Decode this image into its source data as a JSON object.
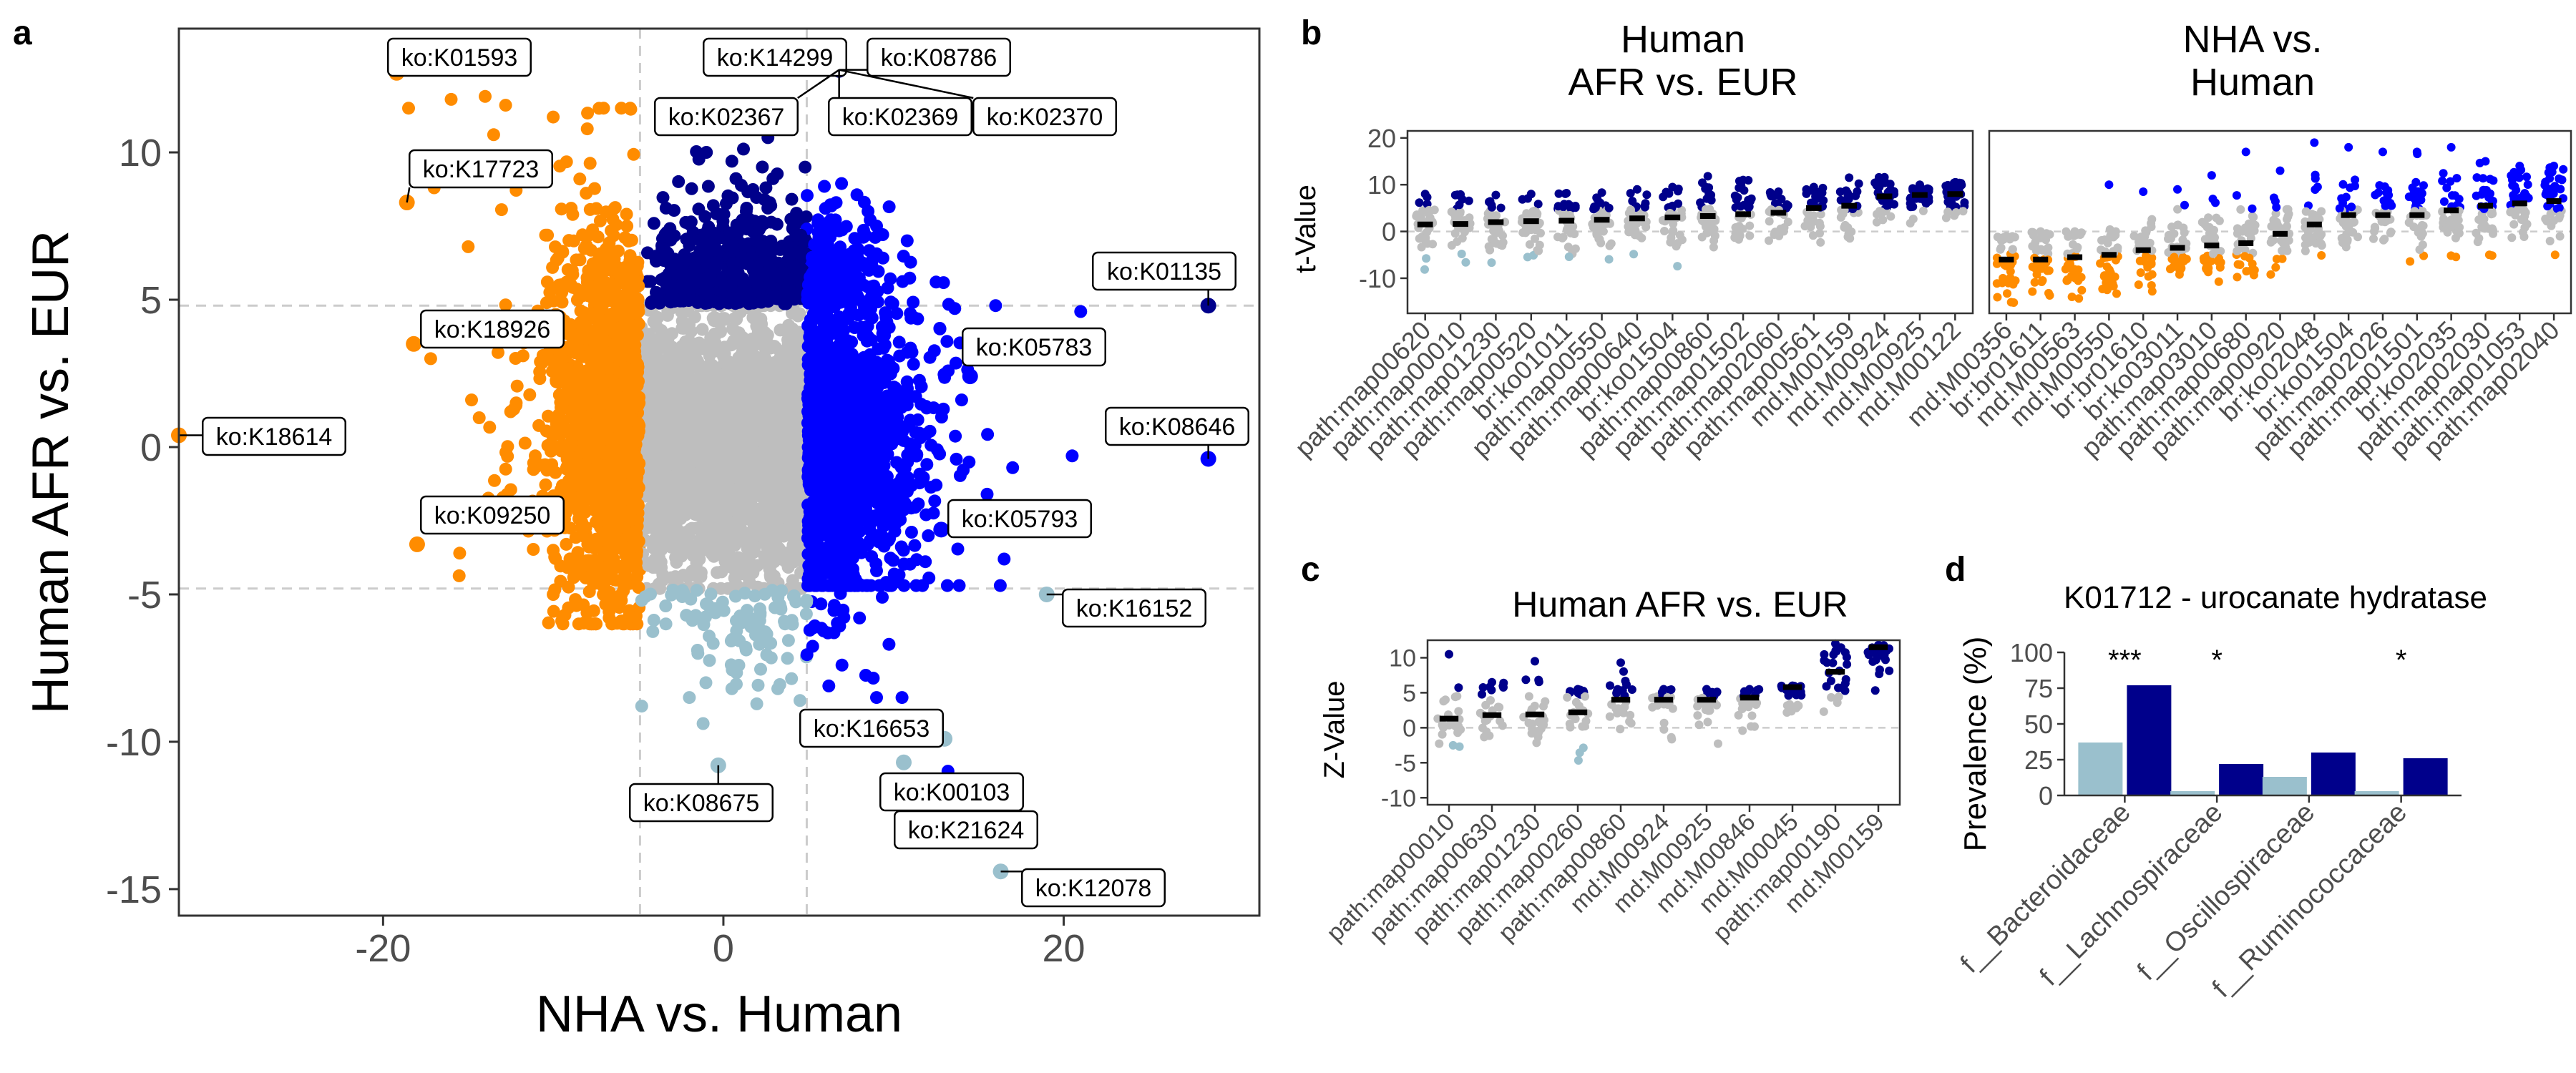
{
  "colors": {
    "orange": "#ff8c00",
    "navy": "#00008b",
    "blue": "#0000ff",
    "grey": "#bebebe",
    "lightblue": "#9ac0cd",
    "dashed": "#cccccc",
    "panel_border": "#333333",
    "mean_bar": "#000000"
  },
  "panel_labels": {
    "a": "a",
    "b": "b",
    "c": "c",
    "d": "d"
  },
  "chart_data": [
    {
      "panel": "a",
      "type": "scatter",
      "title": "",
      "xlabel": "NHA vs. Human",
      "ylabel": "Human AFR vs. EUR",
      "xlim": [
        -32,
        31.5
      ],
      "ylim": [
        -15.9,
        14.2
      ],
      "xticks": [
        -20,
        0,
        20
      ],
      "xtick_labels": [
        "-20",
        "0",
        "20"
      ],
      "yticks": [
        -15,
        -10,
        -5,
        0,
        5,
        10
      ],
      "ytick_labels": [
        "-15",
        "-10",
        "-5",
        "0",
        "5",
        "10"
      ],
      "thresholds": {
        "x": [
          -4.9,
          4.9
        ],
        "y": [
          -4.8,
          4.8
        ]
      },
      "grid": false,
      "legend": "none",
      "color_rule": {
        "orange": "NHA vs. Human < -4.9",
        "navy": "Human AFR vs. EUR > 4.8 and NHA vs. Human > -4.9",
        "blue": "NHA vs. Human > 4.9",
        "lightblue": "Human AFR vs. EUR < -4.8",
        "grey": "not significant"
      },
      "labeled_points": [
        {
          "label": "ko:K01593",
          "x": -19.2,
          "y": 12.7,
          "color": "orange"
        },
        {
          "label": "ko:K14299",
          "x": 6.8,
          "y": 12.8,
          "color": "navy"
        },
        {
          "label": "ko:K08786",
          "x": 6.8,
          "y": 12.8,
          "color": "navy"
        },
        {
          "label": "ko:K02367",
          "x": 6.8,
          "y": 12.8,
          "color": "navy"
        },
        {
          "label": "ko:K02369",
          "x": 6.8,
          "y": 12.8,
          "color": "navy"
        },
        {
          "label": "ko:K02370",
          "x": 6.8,
          "y": 12.8,
          "color": "navy"
        },
        {
          "label": "ko:K17723",
          "x": -18.6,
          "y": 8.3,
          "color": "orange"
        },
        {
          "label": "ko:K01135",
          "x": 28.5,
          "y": 4.8,
          "color": "navy"
        },
        {
          "label": "ko:K18926",
          "x": -18.2,
          "y": 3.5,
          "color": "orange"
        },
        {
          "label": "ko:K05783",
          "x": 14.5,
          "y": 2.4,
          "color": "blue"
        },
        {
          "label": "ko:K18614",
          "x": -32,
          "y": 0.4,
          "color": "orange"
        },
        {
          "label": "ko:K08646",
          "x": 28.5,
          "y": -0.4,
          "color": "blue"
        },
        {
          "label": "ko:K09250",
          "x": -18,
          "y": -3.3,
          "color": "orange"
        },
        {
          "label": "ko:K05793",
          "x": 12.8,
          "y": -2.8,
          "color": "blue"
        },
        {
          "label": "ko:K16152",
          "x": 19,
          "y": -5,
          "color": "lightblue"
        },
        {
          "label": "ko:K16653",
          "x": 13,
          "y": -9.9,
          "color": "lightblue"
        },
        {
          "label": "ko:K00103",
          "x": 10.6,
          "y": -10.7,
          "color": "lightblue"
        },
        {
          "label": "ko:K08675",
          "x": -0.3,
          "y": -10.8,
          "color": "lightblue"
        },
        {
          "label": "ko:K21624",
          "x": 11.8,
          "y": -12.8,
          "color": "lightblue"
        },
        {
          "label": "ko:K12078",
          "x": 16.3,
          "y": -14.4,
          "color": "lightblue"
        }
      ]
    },
    {
      "panel": "b-left",
      "type": "scatter",
      "title": "Human\nAFR vs. EUR",
      "xlabel": "",
      "ylabel": "t-Value",
      "ylim": [
        -17.5,
        21.5
      ],
      "yticks": [
        -10,
        0,
        10,
        20
      ],
      "ytick_labels": [
        "-10",
        "0",
        "10",
        "20"
      ],
      "categories": [
        "path:map00620",
        "path:map00010",
        "path:map01230",
        "path:map00520",
        "br:ko01011",
        "path:map00550",
        "path:map00640",
        "br:ko01504",
        "path:map00860",
        "path:map01502",
        "path:map02060",
        "path:map00561",
        "md:M00159",
        "md:M00924",
        "md:M00925",
        "md:M00122"
      ],
      "means": [
        1.5,
        1.6,
        2.0,
        2.2,
        2.3,
        2.5,
        2.8,
        3.0,
        3.3,
        3.7,
        4.0,
        5.0,
        5.5,
        7.5,
        7.8,
        8.0
      ],
      "category_maxima": [
        8.0,
        7.9,
        7.8,
        8.0,
        8.2,
        8.3,
        9.0,
        9.5,
        11.8,
        11.0,
        8.5,
        9.5,
        11.5,
        11.6,
        10.0,
        10.5
      ]
    },
    {
      "panel": "b-right",
      "type": "scatter",
      "title": "NHA vs.\nHuman",
      "ylim": [
        -17.5,
        21.5
      ],
      "categories": [
        "md:M00356",
        "br:br01611",
        "md:M00563",
        "md:M00550",
        "br:br01610",
        "br:ko03011",
        "path:map03010",
        "path:map00680",
        "path:map00920",
        "br:ko02048",
        "br:ko01504",
        "path:map02026",
        "path:map01501",
        "br:ko02035",
        "path:map02030",
        "path:map01053",
        "path:map02040"
      ],
      "means": [
        -6,
        -6,
        -5.5,
        -5,
        -4,
        -3.5,
        -3,
        -2.5,
        -0.5,
        1.5,
        3.5,
        3.5,
        3.5,
        4.5,
        5.5,
        6,
        6.5
      ],
      "category_maxima": [
        -1,
        0,
        0,
        10,
        8.5,
        9,
        12,
        17,
        13,
        19,
        18,
        17,
        17,
        18,
        15,
        14,
        14
      ]
    },
    {
      "panel": "c",
      "type": "scatter",
      "title": "Human AFR vs. EUR",
      "xlabel": "",
      "ylabel": "Z-Value",
      "ylim": [
        -11,
        12.5
      ],
      "yticks": [
        -10,
        -5,
        0,
        5,
        10
      ],
      "ytick_labels": [
        "-10",
        "-5",
        "0",
        "5",
        "10"
      ],
      "categories": [
        "path:map00010",
        "path:map00630",
        "path:map01230",
        "path:map00260",
        "path:map00860",
        "md:M00924",
        "md:M00925",
        "md:M00846",
        "md:M00045",
        "path:map00190",
        "md:M00159"
      ],
      "means": [
        1.3,
        1.8,
        1.9,
        2.2,
        4,
        4,
        4,
        4.3,
        5.8,
        8,
        11.5
      ],
      "category_maxima": [
        10.5,
        6.5,
        9.5,
        5.5,
        9.3,
        5.5,
        5.5,
        5.5,
        6,
        12,
        11.8
      ]
    },
    {
      "panel": "d",
      "type": "bar",
      "title": "K01712 - urocanate hydratase",
      "xlabel": "",
      "ylabel": "Prevalence (%)",
      "ylim": [
        0,
        100
      ],
      "yticks": [
        0,
        25,
        50,
        75,
        100
      ],
      "ytick_labels": [
        "0",
        "25",
        "50",
        "75",
        "100"
      ],
      "categories": [
        "f__Bacteroidaceae",
        "f__Lachnospiraceae",
        "f__Oscillospiraceae",
        "f__Ruminococcaceae"
      ],
      "series": [
        {
          "color": "#9ac0cd",
          "values": [
            37,
            3,
            13,
            3
          ]
        },
        {
          "color": "#00008b",
          "values": [
            77,
            22,
            30,
            26
          ]
        }
      ],
      "annotations": [
        "***",
        "*",
        "",
        "*"
      ],
      "legend": "none"
    }
  ]
}
